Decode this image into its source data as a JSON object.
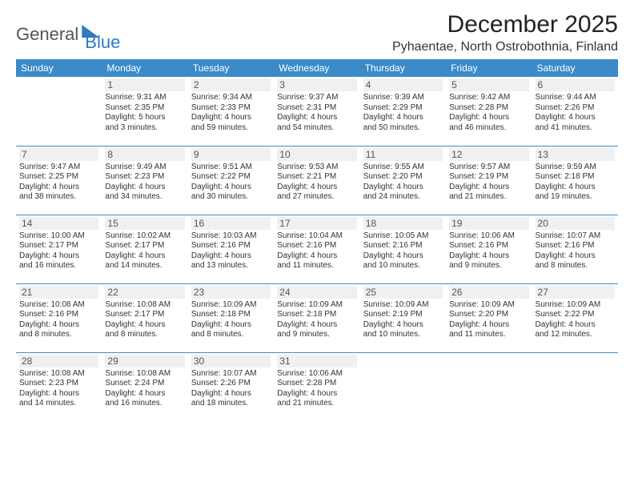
{
  "brand": {
    "part1": "General",
    "part2": "Blue"
  },
  "title": "December 2025",
  "location": "Pyhaentae, North Ostrobothnia, Finland",
  "colors": {
    "header_bg": "#3b8bc9",
    "header_fg": "#ffffff",
    "daynum_bg": "#eef0f1",
    "row_border": "#3b8bc9",
    "brand_blue": "#2f7ac0",
    "text": "#333333"
  },
  "weekdays": [
    "Sunday",
    "Monday",
    "Tuesday",
    "Wednesday",
    "Thursday",
    "Friday",
    "Saturday"
  ],
  "weeks": [
    [
      null,
      {
        "n": "1",
        "sr": "Sunrise: 9:31 AM",
        "ss": "Sunset: 2:35 PM",
        "d1": "Daylight: 5 hours",
        "d2": "and 3 minutes."
      },
      {
        "n": "2",
        "sr": "Sunrise: 9:34 AM",
        "ss": "Sunset: 2:33 PM",
        "d1": "Daylight: 4 hours",
        "d2": "and 59 minutes."
      },
      {
        "n": "3",
        "sr": "Sunrise: 9:37 AM",
        "ss": "Sunset: 2:31 PM",
        "d1": "Daylight: 4 hours",
        "d2": "and 54 minutes."
      },
      {
        "n": "4",
        "sr": "Sunrise: 9:39 AM",
        "ss": "Sunset: 2:29 PM",
        "d1": "Daylight: 4 hours",
        "d2": "and 50 minutes."
      },
      {
        "n": "5",
        "sr": "Sunrise: 9:42 AM",
        "ss": "Sunset: 2:28 PM",
        "d1": "Daylight: 4 hours",
        "d2": "and 46 minutes."
      },
      {
        "n": "6",
        "sr": "Sunrise: 9:44 AM",
        "ss": "Sunset: 2:26 PM",
        "d1": "Daylight: 4 hours",
        "d2": "and 41 minutes."
      }
    ],
    [
      {
        "n": "7",
        "sr": "Sunrise: 9:47 AM",
        "ss": "Sunset: 2:25 PM",
        "d1": "Daylight: 4 hours",
        "d2": "and 38 minutes."
      },
      {
        "n": "8",
        "sr": "Sunrise: 9:49 AM",
        "ss": "Sunset: 2:23 PM",
        "d1": "Daylight: 4 hours",
        "d2": "and 34 minutes."
      },
      {
        "n": "9",
        "sr": "Sunrise: 9:51 AM",
        "ss": "Sunset: 2:22 PM",
        "d1": "Daylight: 4 hours",
        "d2": "and 30 minutes."
      },
      {
        "n": "10",
        "sr": "Sunrise: 9:53 AM",
        "ss": "Sunset: 2:21 PM",
        "d1": "Daylight: 4 hours",
        "d2": "and 27 minutes."
      },
      {
        "n": "11",
        "sr": "Sunrise: 9:55 AM",
        "ss": "Sunset: 2:20 PM",
        "d1": "Daylight: 4 hours",
        "d2": "and 24 minutes."
      },
      {
        "n": "12",
        "sr": "Sunrise: 9:57 AM",
        "ss": "Sunset: 2:19 PM",
        "d1": "Daylight: 4 hours",
        "d2": "and 21 minutes."
      },
      {
        "n": "13",
        "sr": "Sunrise: 9:59 AM",
        "ss": "Sunset: 2:18 PM",
        "d1": "Daylight: 4 hours",
        "d2": "and 19 minutes."
      }
    ],
    [
      {
        "n": "14",
        "sr": "Sunrise: 10:00 AM",
        "ss": "Sunset: 2:17 PM",
        "d1": "Daylight: 4 hours",
        "d2": "and 16 minutes."
      },
      {
        "n": "15",
        "sr": "Sunrise: 10:02 AM",
        "ss": "Sunset: 2:17 PM",
        "d1": "Daylight: 4 hours",
        "d2": "and 14 minutes."
      },
      {
        "n": "16",
        "sr": "Sunrise: 10:03 AM",
        "ss": "Sunset: 2:16 PM",
        "d1": "Daylight: 4 hours",
        "d2": "and 13 minutes."
      },
      {
        "n": "17",
        "sr": "Sunrise: 10:04 AM",
        "ss": "Sunset: 2:16 PM",
        "d1": "Daylight: 4 hours",
        "d2": "and 11 minutes."
      },
      {
        "n": "18",
        "sr": "Sunrise: 10:05 AM",
        "ss": "Sunset: 2:16 PM",
        "d1": "Daylight: 4 hours",
        "d2": "and 10 minutes."
      },
      {
        "n": "19",
        "sr": "Sunrise: 10:06 AM",
        "ss": "Sunset: 2:16 PM",
        "d1": "Daylight: 4 hours",
        "d2": "and 9 minutes."
      },
      {
        "n": "20",
        "sr": "Sunrise: 10:07 AM",
        "ss": "Sunset: 2:16 PM",
        "d1": "Daylight: 4 hours",
        "d2": "and 8 minutes."
      }
    ],
    [
      {
        "n": "21",
        "sr": "Sunrise: 10:08 AM",
        "ss": "Sunset: 2:16 PM",
        "d1": "Daylight: 4 hours",
        "d2": "and 8 minutes."
      },
      {
        "n": "22",
        "sr": "Sunrise: 10:08 AM",
        "ss": "Sunset: 2:17 PM",
        "d1": "Daylight: 4 hours",
        "d2": "and 8 minutes."
      },
      {
        "n": "23",
        "sr": "Sunrise: 10:09 AM",
        "ss": "Sunset: 2:18 PM",
        "d1": "Daylight: 4 hours",
        "d2": "and 8 minutes."
      },
      {
        "n": "24",
        "sr": "Sunrise: 10:09 AM",
        "ss": "Sunset: 2:18 PM",
        "d1": "Daylight: 4 hours",
        "d2": "and 9 minutes."
      },
      {
        "n": "25",
        "sr": "Sunrise: 10:09 AM",
        "ss": "Sunset: 2:19 PM",
        "d1": "Daylight: 4 hours",
        "d2": "and 10 minutes."
      },
      {
        "n": "26",
        "sr": "Sunrise: 10:09 AM",
        "ss": "Sunset: 2:20 PM",
        "d1": "Daylight: 4 hours",
        "d2": "and 11 minutes."
      },
      {
        "n": "27",
        "sr": "Sunrise: 10:09 AM",
        "ss": "Sunset: 2:22 PM",
        "d1": "Daylight: 4 hours",
        "d2": "and 12 minutes."
      }
    ],
    [
      {
        "n": "28",
        "sr": "Sunrise: 10:08 AM",
        "ss": "Sunset: 2:23 PM",
        "d1": "Daylight: 4 hours",
        "d2": "and 14 minutes."
      },
      {
        "n": "29",
        "sr": "Sunrise: 10:08 AM",
        "ss": "Sunset: 2:24 PM",
        "d1": "Daylight: 4 hours",
        "d2": "and 16 minutes."
      },
      {
        "n": "30",
        "sr": "Sunrise: 10:07 AM",
        "ss": "Sunset: 2:26 PM",
        "d1": "Daylight: 4 hours",
        "d2": "and 18 minutes."
      },
      {
        "n": "31",
        "sr": "Sunrise: 10:06 AM",
        "ss": "Sunset: 2:28 PM",
        "d1": "Daylight: 4 hours",
        "d2": "and 21 minutes."
      },
      null,
      null,
      null
    ]
  ]
}
